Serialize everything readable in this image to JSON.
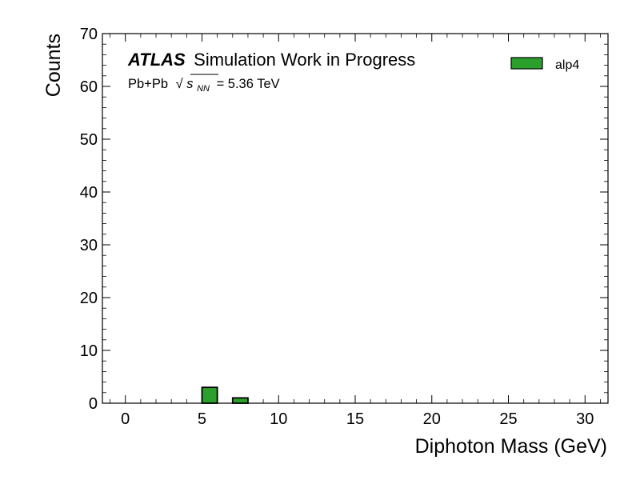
{
  "chart_data": {
    "type": "bar",
    "title": "",
    "xlabel": "Diphoton Mass (GeV)",
    "ylabel": "Counts",
    "xlim": [
      -1.5,
      31.5
    ],
    "ylim": [
      0,
      70
    ],
    "xticks": [
      0,
      5,
      10,
      15,
      20,
      25,
      30
    ],
    "yticks": [
      0,
      10,
      20,
      30,
      40,
      50,
      60,
      70
    ],
    "x_tick_labels": [
      "0",
      "5",
      "10",
      "15",
      "20",
      "25",
      "30"
    ],
    "y_tick_labels": [
      "0",
      "10",
      "20",
      "30",
      "40",
      "50",
      "60",
      "70"
    ],
    "grid": false,
    "legend_position": "top-right",
    "series": [
      {
        "name": "alp4",
        "color": "#2ca02c",
        "bins": [
          {
            "x0": 5.0,
            "x1": 6.0,
            "value": 3
          },
          {
            "x0": 7.0,
            "x1": 8.0,
            "value": 1
          }
        ]
      }
    ]
  },
  "annotations": {
    "experiment": "ATLAS",
    "status": "Simulation Work in Progress",
    "system": "Pb+Pb",
    "sqrt_s_symbol": "√",
    "sqrt_s_var": "s",
    "sqrt_s_sub": "NN",
    "energy_value": "= 5.36 TeV"
  }
}
